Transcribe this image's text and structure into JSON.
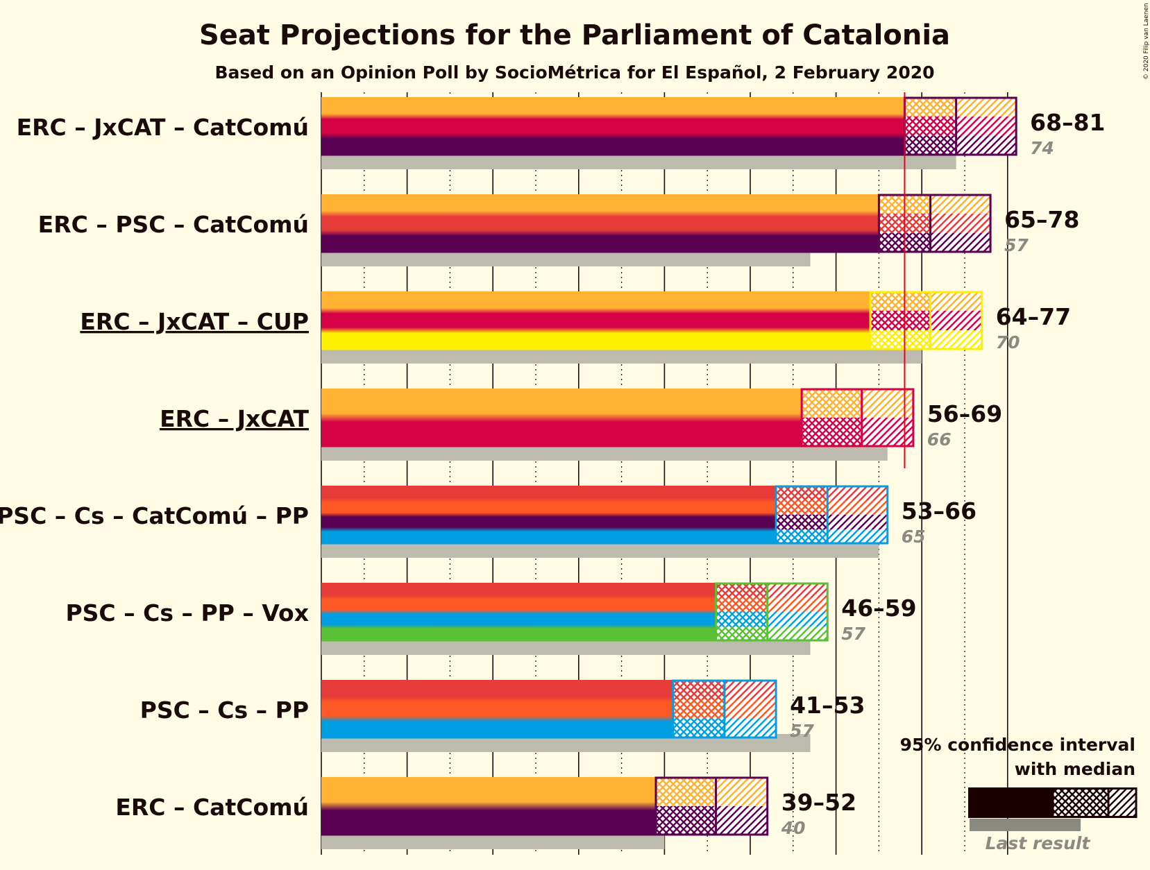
{
  "copyright": "© 2020 Filip van Laenen",
  "colors": {
    "background": "#FFFBE5",
    "majority_line": "#E8001C",
    "last_result": "#BDBAAE",
    "ERC": "#FFB232",
    "JxCAT": "#D60046",
    "CatComu": "#5A0052",
    "CUP": "#FFF000",
    "PSC": "#E73B39",
    "Cs": "#FF5824",
    "PP": "#009FE3",
    "Vox": "#5AC035"
  },
  "chart_data": {
    "type": "bar",
    "orientation": "horizontal",
    "title": "Seat Projections for the Parliament of Catalonia",
    "subtitle": "Based on an Opinion Poll by SocioMétrica for El Español, 2 February 2020",
    "x_range": [
      0,
      81
    ],
    "majority": 68,
    "grid": "vertical lines every 5 seats, dotted between",
    "legend_title": "95% confidence interval with median",
    "legend_last": "Last result",
    "coalitions": [
      {
        "name": "ERC – JxCAT – CatComú",
        "underline": false,
        "parties": [
          "ERC",
          "JxCAT",
          "CatComu"
        ],
        "low": 68,
        "median": 74,
        "high": 81,
        "range_label": "68–81",
        "last": 74,
        "last_label": "74"
      },
      {
        "name": "ERC – PSC – CatComú",
        "underline": false,
        "parties": [
          "ERC",
          "PSC",
          "CatComu"
        ],
        "low": 65,
        "median": 71,
        "high": 78,
        "range_label": "65–78",
        "last": 57,
        "last_label": "57"
      },
      {
        "name": "ERC – JxCAT – CUP",
        "underline": true,
        "parties": [
          "ERC",
          "JxCAT",
          "CUP"
        ],
        "low": 64,
        "median": 71,
        "high": 77,
        "range_label": "64–77",
        "last": 70,
        "last_label": "70"
      },
      {
        "name": "ERC – JxCAT",
        "underline": true,
        "parties": [
          "ERC",
          "JxCAT"
        ],
        "low": 56,
        "median": 63,
        "high": 69,
        "range_label": "56–69",
        "last": 66,
        "last_label": "66"
      },
      {
        "name": "PSC – Cs – CatComú – PP",
        "underline": false,
        "parties": [
          "PSC",
          "Cs",
          "CatComu",
          "PP"
        ],
        "low": 53,
        "median": 59,
        "high": 66,
        "range_label": "53–66",
        "last": 65,
        "last_label": "65"
      },
      {
        "name": "PSC – Cs – PP – Vox",
        "underline": false,
        "parties": [
          "PSC",
          "Cs",
          "PP",
          "Vox"
        ],
        "low": 46,
        "median": 52,
        "high": 59,
        "range_label": "46–59",
        "last": 57,
        "last_label": "57"
      },
      {
        "name": "PSC – Cs – PP",
        "underline": false,
        "parties": [
          "PSC",
          "Cs",
          "PP"
        ],
        "low": 41,
        "median": 47,
        "high": 53,
        "range_label": "41–53",
        "last": 57,
        "last_label": "57"
      },
      {
        "name": "ERC – CatComú",
        "underline": false,
        "parties": [
          "ERC",
          "CatComu"
        ],
        "low": 39,
        "median": 46,
        "high": 52,
        "range_label": "39–52",
        "last": 40,
        "last_label": "40"
      }
    ]
  }
}
